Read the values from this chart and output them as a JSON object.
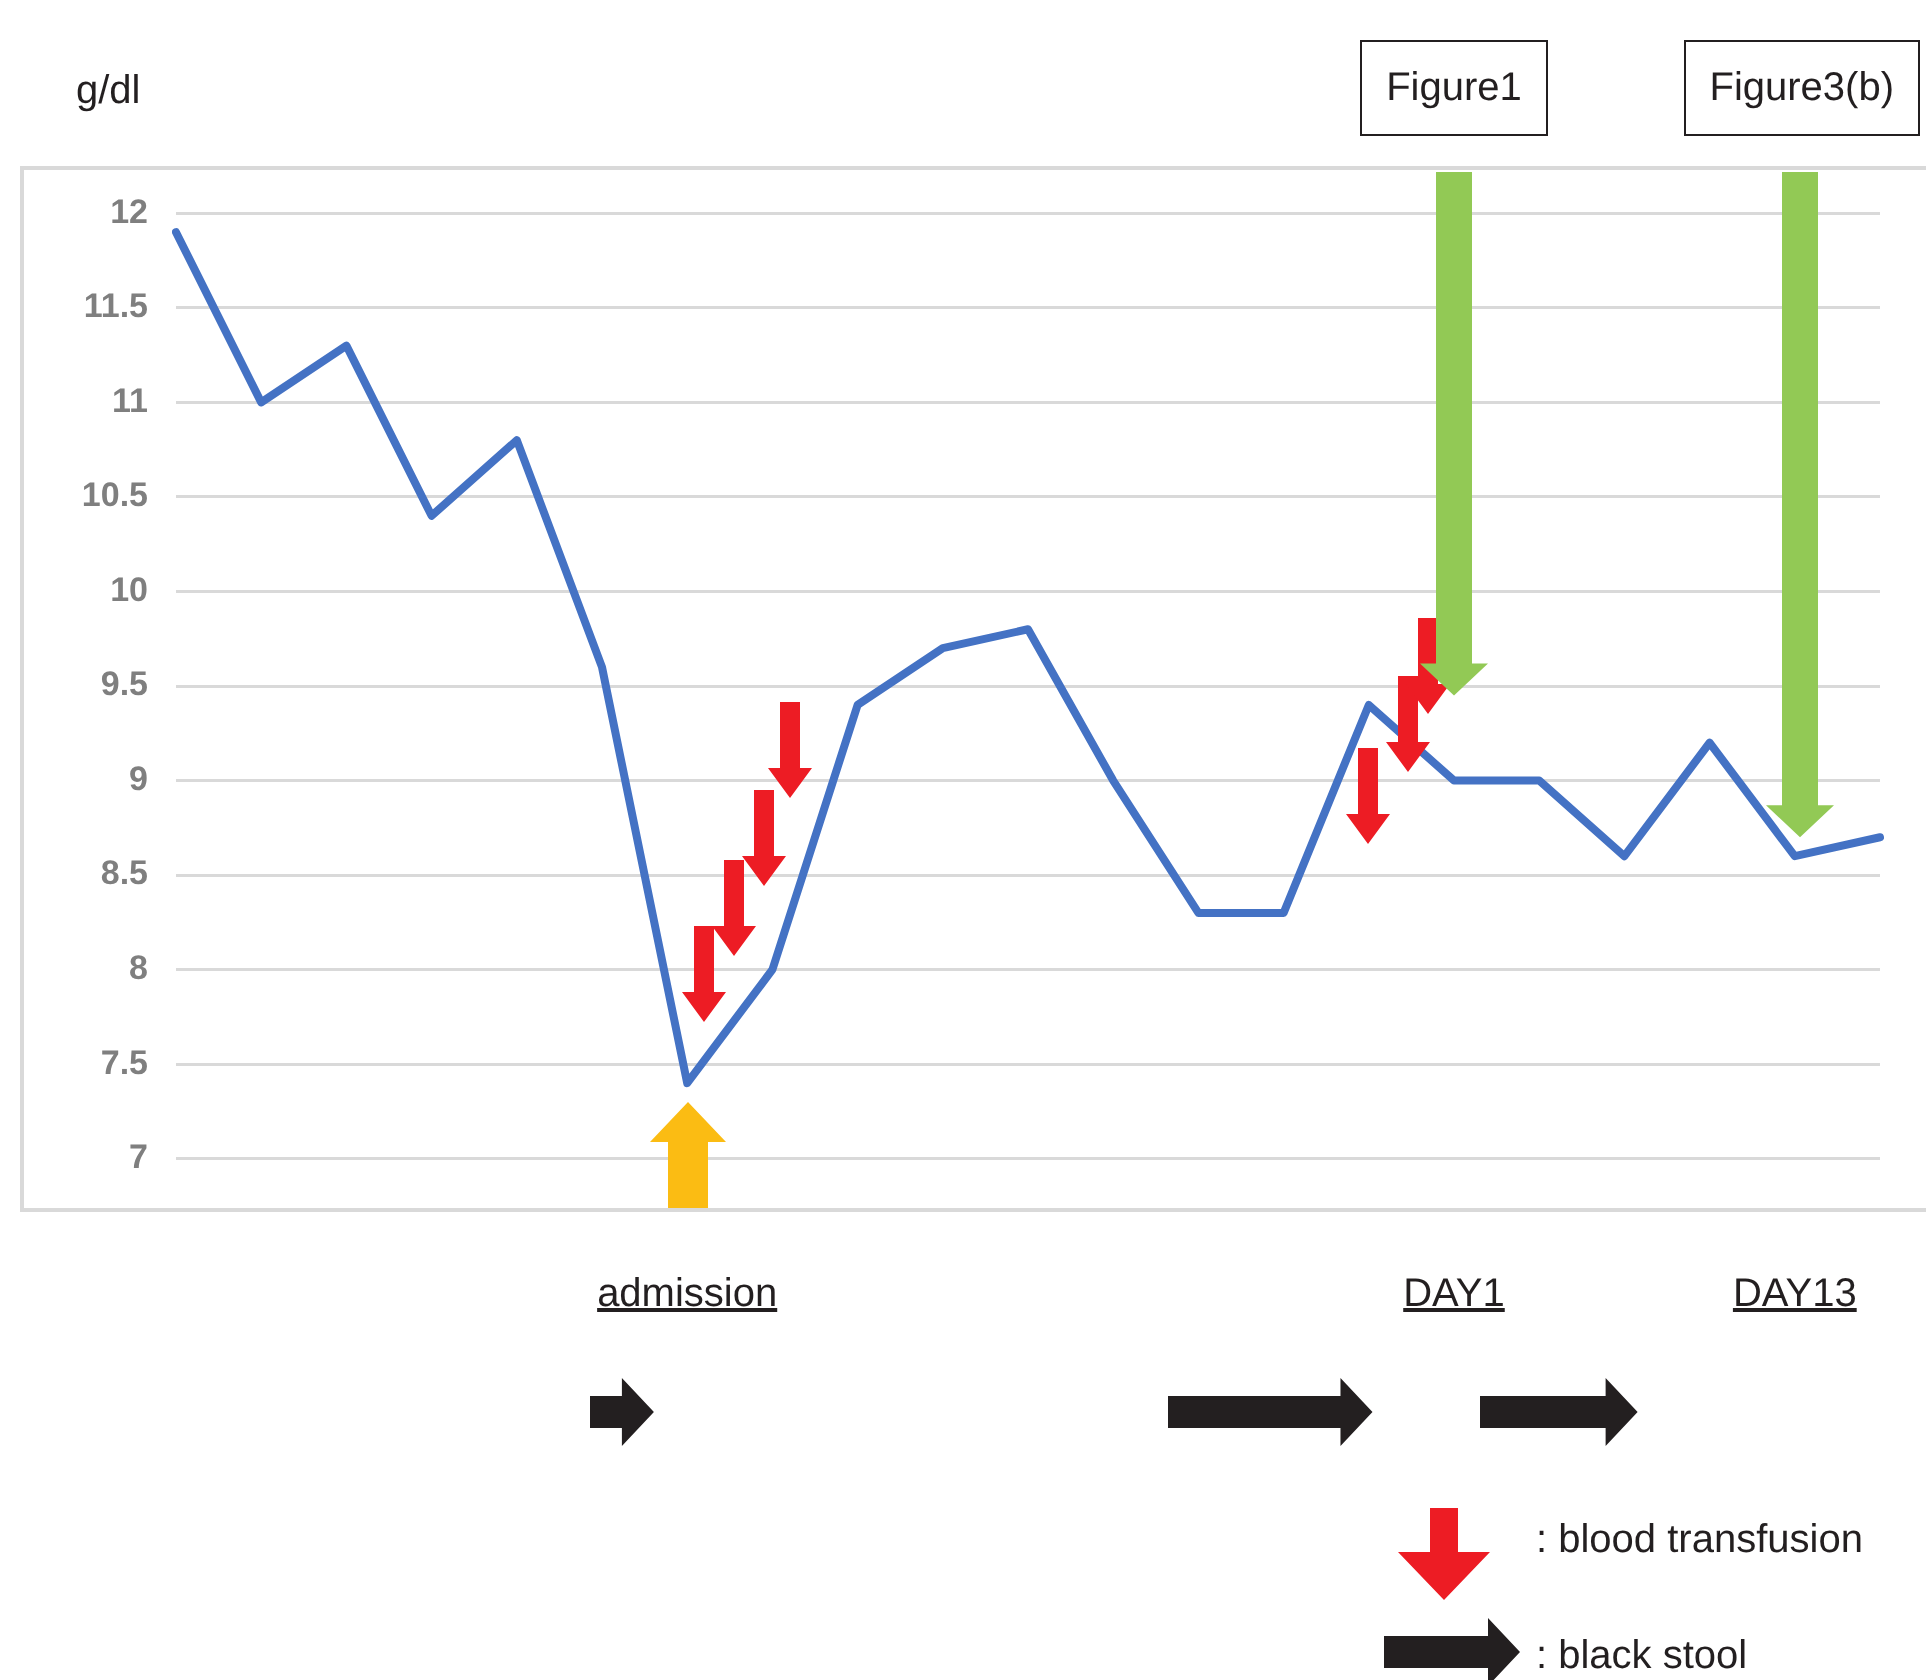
{
  "chart_data": {
    "type": "line",
    "ylabel": "g/dl",
    "categories": [
      null,
      null,
      null,
      null,
      null,
      null,
      null,
      null,
      null,
      null,
      null,
      null,
      null,
      null,
      null,
      null,
      null,
      null,
      null,
      null,
      null
    ],
    "values": [
      11.9,
      11.0,
      11.3,
      10.4,
      10.8,
      9.6,
      7.4,
      8.0,
      9.4,
      9.7,
      9.8,
      9.0,
      8.3,
      8.3,
      9.4,
      9.0,
      9.0,
      8.6,
      9.2,
      8.6,
      8.7
    ],
    "color": "#4472c4",
    "ylim": [
      6.75,
      12.25
    ],
    "yticks": [
      7,
      7.5,
      8,
      8.5,
      9,
      9.5,
      10,
      10.5,
      11,
      11.5,
      12
    ],
    "grid": "y",
    "tick_labels": "y",
    "marker": "none",
    "line_style": "solid",
    "annotations": [
      "admission",
      "DAY1",
      "DAY13",
      "Figure1",
      "Figure3(b)",
      ": blood transfusion",
      ": black stool"
    ]
  }
}
